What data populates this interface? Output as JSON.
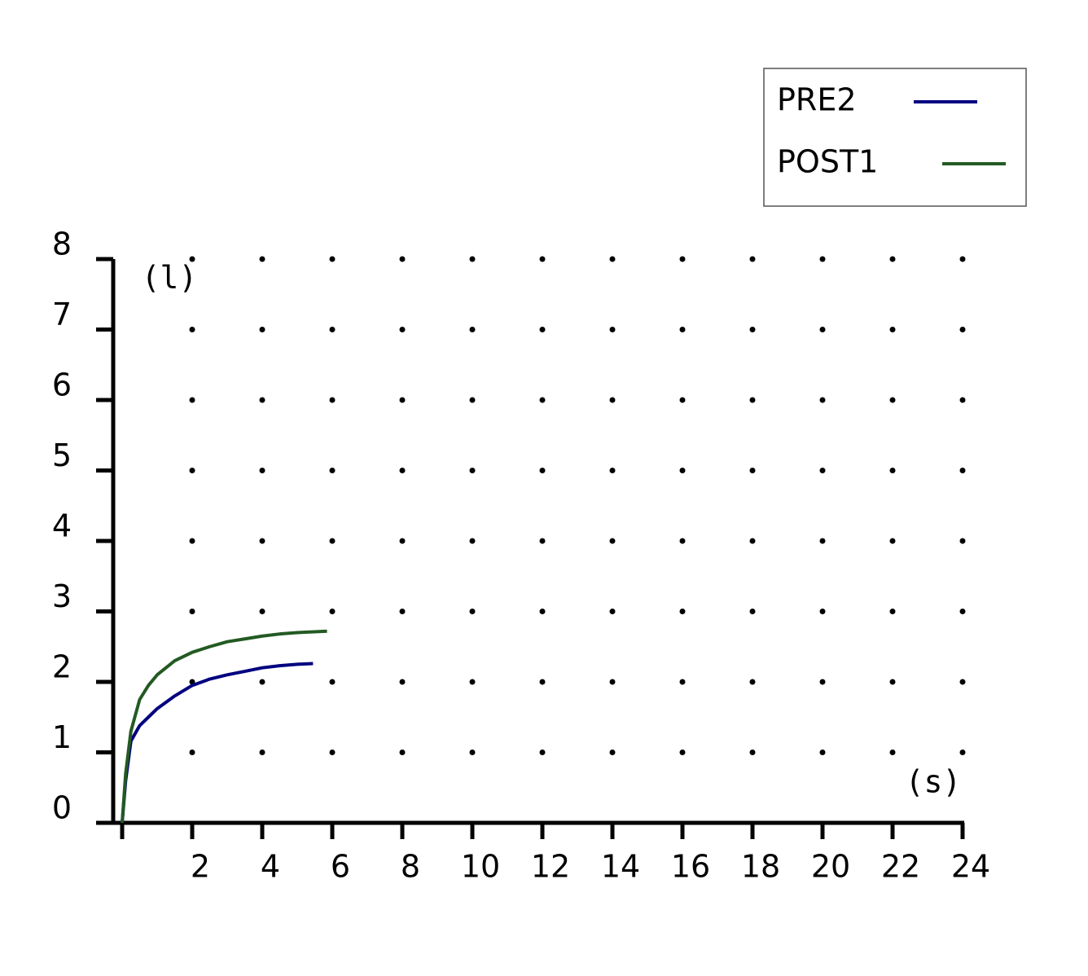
{
  "chart_data": {
    "type": "line",
    "x_label": "(s)",
    "y_label": "(l)",
    "xlim": [
      0,
      24
    ],
    "xticks": [
      2,
      4,
      6,
      8,
      10,
      12,
      14,
      16,
      18,
      20,
      22,
      24
    ],
    "ylim": [
      0,
      8
    ],
    "yticks": [
      0,
      1,
      2,
      3,
      4,
      5,
      6,
      7,
      8
    ],
    "grid": "dots",
    "legend": "upper right",
    "series": [
      {
        "name": "PRE2",
        "color": "#000080",
        "x": [
          0,
          0.1,
          0.25,
          0.5,
          0.75,
          1,
          1.5,
          2,
          2.5,
          3,
          3.5,
          4,
          4.5,
          5,
          5.45
        ],
        "values": [
          0,
          0.6,
          1.16,
          1.38,
          1.5,
          1.62,
          1.8,
          1.95,
          2.04,
          2.1,
          2.15,
          2.2,
          2.23,
          2.25,
          2.26
        ]
      },
      {
        "name": "POST1",
        "color": "#235a23",
        "x": [
          0,
          0.1,
          0.25,
          0.5,
          0.75,
          1,
          1.5,
          2,
          2.5,
          3,
          3.5,
          4,
          4.5,
          5,
          5.85
        ],
        "values": [
          0,
          0.7,
          1.3,
          1.75,
          1.95,
          2.1,
          2.3,
          2.42,
          2.5,
          2.57,
          2.61,
          2.65,
          2.68,
          2.7,
          2.72
        ]
      }
    ]
  }
}
